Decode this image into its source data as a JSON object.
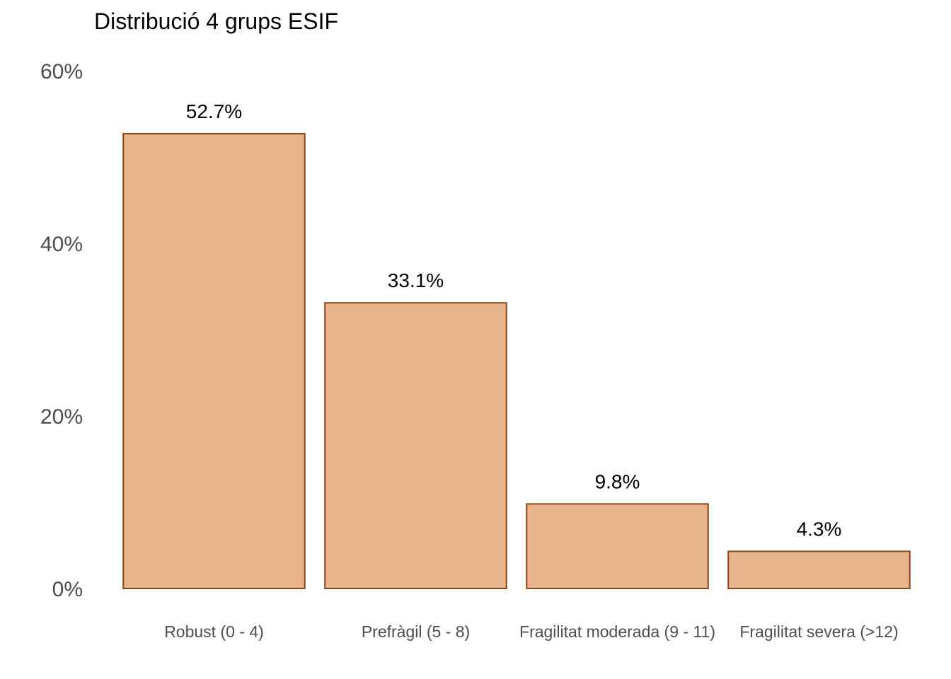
{
  "chart_data": {
    "type": "bar",
    "title": "Distribució 4 grups ESIF",
    "xlabel": "",
    "ylabel": "",
    "categories": [
      "Robust (0 - 4)",
      "Prefràgil (5 - 8)",
      "Fragilitat moderada (9 - 11)",
      "Fragilitat severa (>12)"
    ],
    "values": [
      52.7,
      33.1,
      9.8,
      4.3
    ],
    "data_labels": [
      "52.7%",
      "33.1%",
      "9.8%",
      "4.3%"
    ],
    "ylim": [
      0,
      60
    ],
    "y_ticks": [
      0,
      20,
      40,
      60
    ],
    "y_tick_labels": [
      "0%",
      "20%",
      "40%",
      "60%"
    ],
    "grid": false,
    "legend": "none",
    "colors": {
      "bar_fill": "#e8b48e",
      "bar_stroke": "#8b4513",
      "text": "#000000",
      "tick_text": "#4d4d4d"
    }
  }
}
